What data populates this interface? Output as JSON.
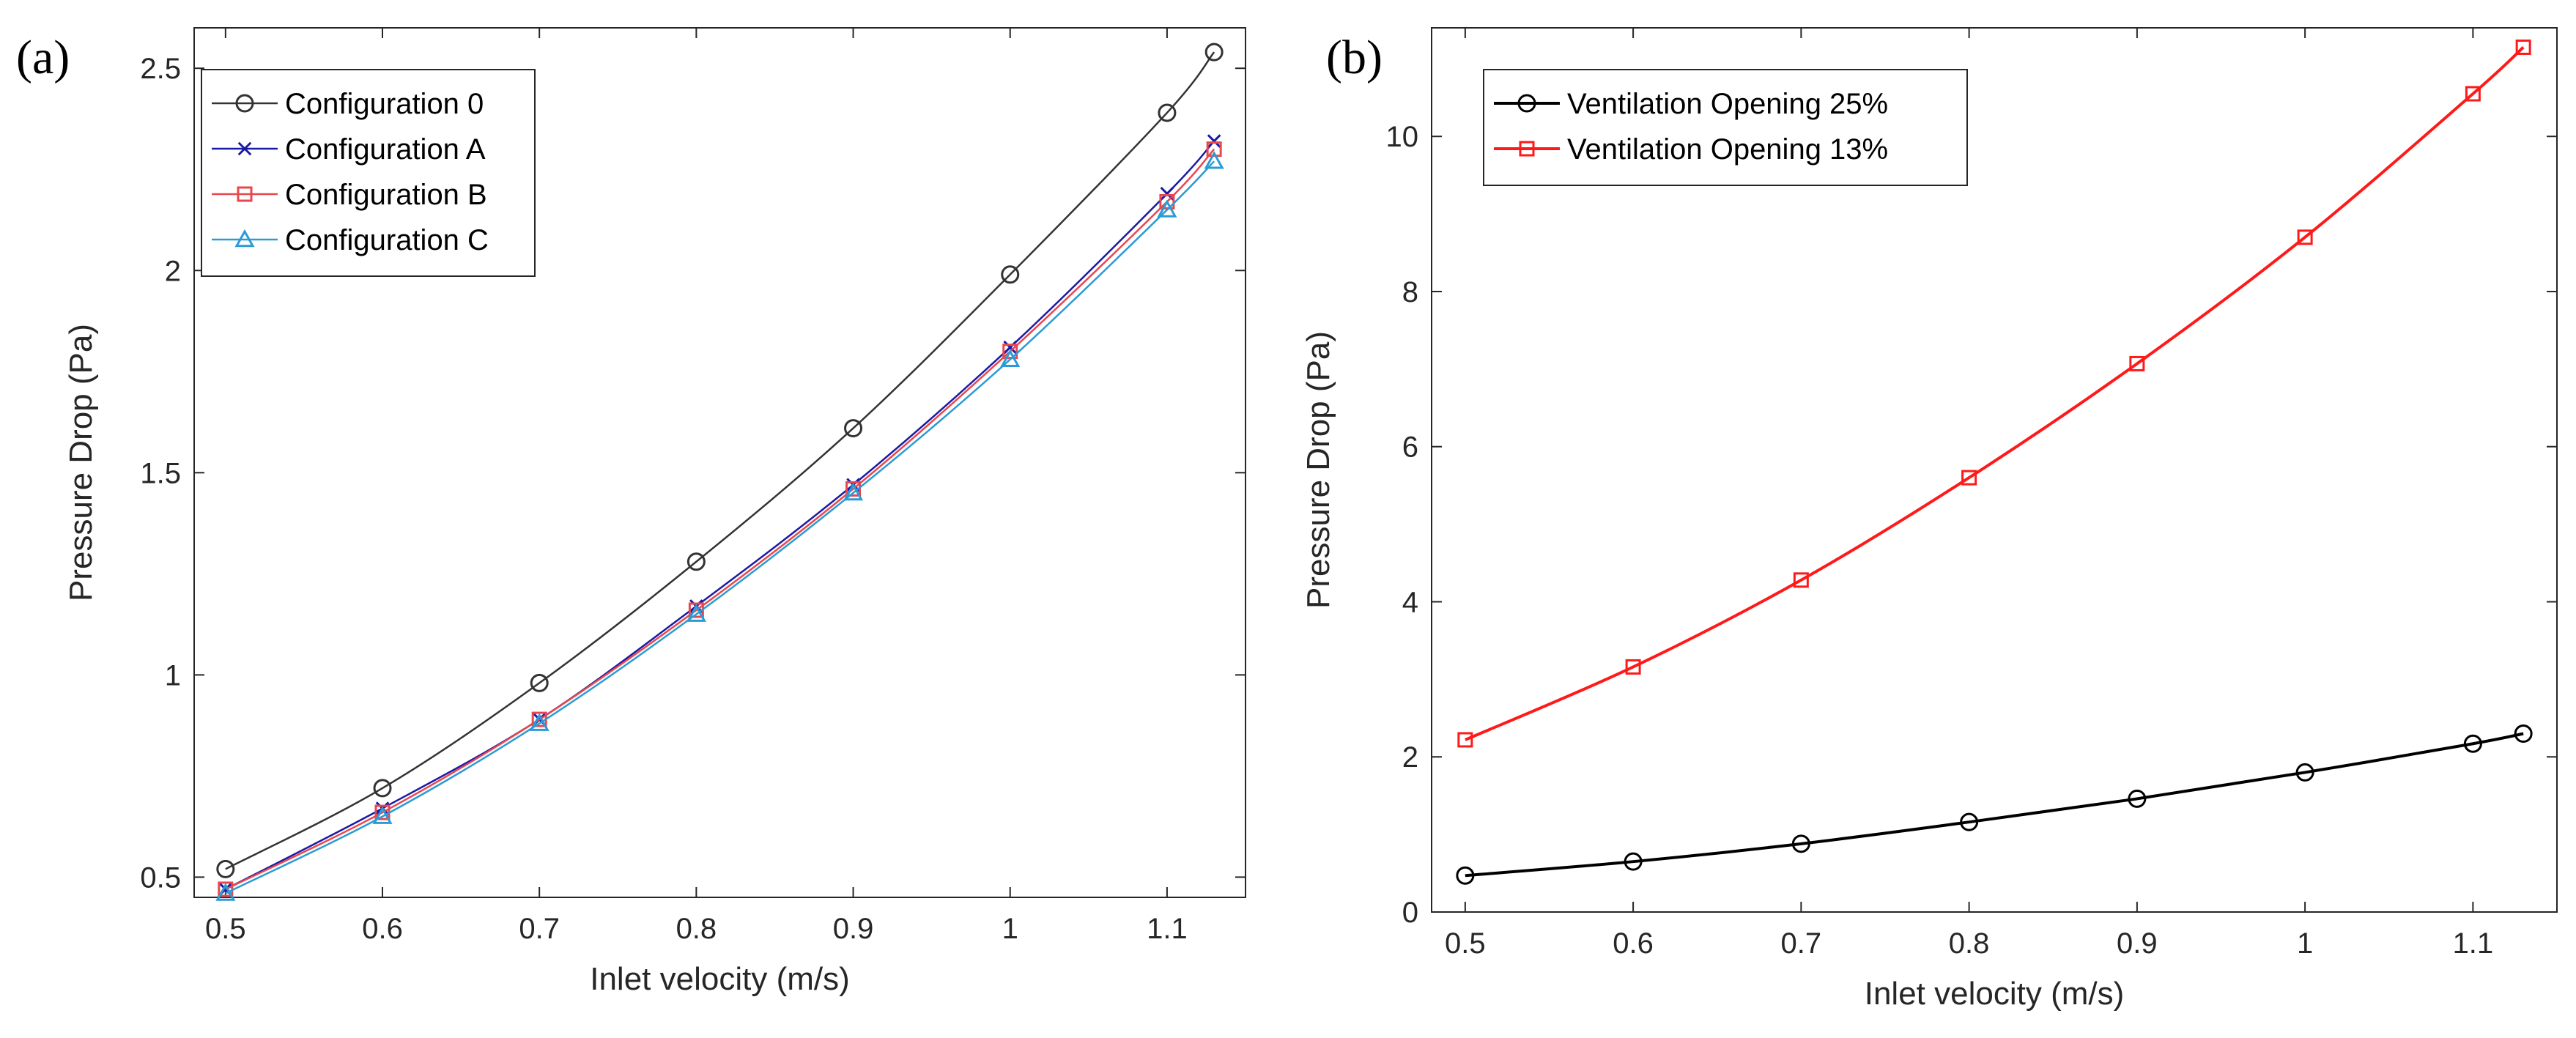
{
  "chart_data": [
    {
      "type": "line",
      "panel_label": "(a)",
      "xlabel": "Inlet velocity (m/s)",
      "ylabel": "Pressure Drop (Pa)",
      "xlim": [
        0.48,
        1.15
      ],
      "ylim": [
        0.45,
        2.6
      ],
      "xticks": [
        0.5,
        0.6,
        0.7,
        0.8,
        0.9,
        1,
        1.1
      ],
      "xtick_labels": [
        "0.5",
        "0.6",
        "0.7",
        "0.8",
        "0.9",
        "1",
        "1.1"
      ],
      "yticks": [
        0.5,
        1,
        1.5,
        2,
        2.5
      ],
      "ytick_labels": [
        "0.5",
        "1",
        "1.5",
        "2",
        "2.5"
      ],
      "legend_position": "top-left",
      "x": [
        0.5,
        0.6,
        0.7,
        0.8,
        0.9,
        1.0,
        1.1,
        1.13
      ],
      "series": [
        {
          "name": "Configuration 0",
          "color": "#333333",
          "marker": "circle",
          "values": [
            0.52,
            0.72,
            0.98,
            1.28,
            1.61,
            1.99,
            2.39,
            2.54
          ]
        },
        {
          "name": "Configuration A",
          "color": "#1a1aa6",
          "marker": "x",
          "values": [
            0.47,
            0.67,
            0.89,
            1.17,
            1.47,
            1.81,
            2.19,
            2.32
          ]
        },
        {
          "name": "Configuration B",
          "color": "#e8474d",
          "marker": "square",
          "values": [
            0.47,
            0.66,
            0.89,
            1.16,
            1.46,
            1.8,
            2.17,
            2.3
          ]
        },
        {
          "name": "Configuration C",
          "color": "#2b9bd6",
          "marker": "triangle",
          "values": [
            0.46,
            0.65,
            0.88,
            1.15,
            1.45,
            1.78,
            2.15,
            2.27
          ]
        }
      ]
    },
    {
      "type": "line",
      "panel_label": "(b)",
      "xlabel": "Inlet velocity (m/s)",
      "ylabel": "Pressure Drop (Pa)",
      "xlim": [
        0.48,
        1.15
      ],
      "ylim": [
        0,
        11.4
      ],
      "xticks": [
        0.5,
        0.6,
        0.7,
        0.8,
        0.9,
        1,
        1.1
      ],
      "xtick_labels": [
        "0.5",
        "0.6",
        "0.7",
        "0.8",
        "0.9",
        "1",
        "1.1"
      ],
      "yticks": [
        0,
        2,
        4,
        6,
        8,
        10
      ],
      "ytick_labels": [
        "0",
        "2",
        "4",
        "6",
        "8",
        "10"
      ],
      "legend_position": "top-left",
      "x": [
        0.5,
        0.6,
        0.7,
        0.8,
        0.9,
        1.0,
        1.1,
        1.13
      ],
      "series": [
        {
          "name": "Ventilation Opening 25%",
          "color": "#000000",
          "marker": "circle",
          "values": [
            0.47,
            0.65,
            0.88,
            1.16,
            1.46,
            1.8,
            2.17,
            2.3
          ]
        },
        {
          "name": "Ventilation Opening 13%",
          "color": "#ff1a1a",
          "marker": "square",
          "values": [
            2.22,
            3.16,
            4.28,
            5.6,
            7.07,
            8.7,
            10.55,
            11.15
          ]
        }
      ]
    }
  ]
}
